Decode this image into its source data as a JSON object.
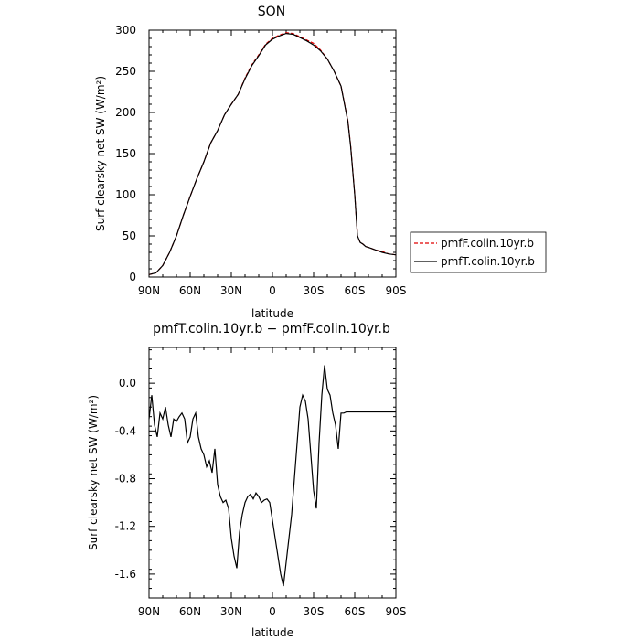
{
  "chart_data": [
    {
      "type": "line",
      "title": "SON",
      "xlabel": "latitude",
      "ylabel": "Surf clearsky net SW (W/m²)",
      "x_tick_labels": [
        "90N",
        "60N",
        "30N",
        "0",
        "30S",
        "60S",
        "90S"
      ],
      "x_ticks": [
        90,
        60,
        30,
        0,
        -30,
        -60,
        -90
      ],
      "y_tick_labels": [
        "0",
        "50",
        "100",
        "150",
        "200",
        "250",
        "300"
      ],
      "y_ticks": [
        0,
        50,
        100,
        150,
        200,
        250,
        300
      ],
      "xlim": [
        90,
        -90
      ],
      "ylim": [
        0,
        300
      ],
      "legend_position": "right",
      "series": [
        {
          "name": "pmfF.colin.10yr.b",
          "color": "#e00000",
          "dash": "dashed",
          "x": [
            90,
            85,
            80,
            75,
            70,
            65,
            60,
            55,
            50,
            45,
            40,
            35,
            30,
            25,
            20,
            15,
            10,
            5,
            0,
            -5,
            -10,
            -15,
            -20,
            -25,
            -30,
            -35,
            -40,
            -45,
            -50,
            -55,
            -57,
            -60,
            -62,
            -64,
            -66,
            -68,
            -70,
            -75,
            -80,
            -85,
            -90
          ],
          "values": [
            3,
            5,
            14,
            30,
            50,
            75,
            98,
            120,
            140,
            163,
            178,
            197,
            210,
            222,
            242,
            258,
            270,
            283,
            290,
            294,
            297,
            296,
            292,
            288,
            284,
            276,
            265,
            250,
            232,
            190,
            160,
            100,
            50,
            42,
            40,
            37,
            36,
            33,
            31,
            28,
            27
          ]
        },
        {
          "name": "pmfT.colin.10yr.b",
          "color": "#000000",
          "dash": "solid",
          "x": [
            90,
            85,
            80,
            75,
            70,
            65,
            60,
            55,
            50,
            45,
            40,
            35,
            30,
            25,
            20,
            15,
            10,
            5,
            0,
            -5,
            -10,
            -15,
            -20,
            -25,
            -30,
            -35,
            -40,
            -45,
            -50,
            -55,
            -57,
            -60,
            -62,
            -64,
            -66,
            -68,
            -70,
            -75,
            -80,
            -85,
            -90
          ],
          "values": [
            3,
            5,
            14,
            30,
            50,
            75,
            98,
            120,
            140,
            163,
            178,
            197,
            210,
            222,
            241,
            257,
            269,
            282,
            289,
            293,
            296,
            295,
            291,
            287,
            282,
            275,
            265,
            250,
            232,
            189,
            159,
            100,
            50,
            42,
            40,
            37,
            36,
            33,
            30,
            28,
            27
          ]
        }
      ]
    },
    {
      "type": "line",
      "title": "pmfT.colin.10yr.b − pmfF.colin.10yr.b",
      "xlabel": "latitude",
      "ylabel": "Surf clearsky net SW (W/m²)",
      "x_tick_labels": [
        "90N",
        "60N",
        "30N",
        "0",
        "30S",
        "60S",
        "90S"
      ],
      "x_ticks": [
        90,
        60,
        30,
        0,
        -30,
        -60,
        -90
      ],
      "y_tick_labels": [
        "0.0",
        "-0.4",
        "-0.8",
        "-1.2",
        "-1.6"
      ],
      "y_ticks": [
        0.0,
        -0.4,
        -0.8,
        -1.2,
        -1.6
      ],
      "xlim": [
        90,
        -90
      ],
      "ylim": [
        -1.8,
        0.3
      ],
      "series": [
        {
          "color": "#000000",
          "x": [
            90,
            88,
            86,
            84,
            82,
            80,
            78,
            76,
            74,
            72,
            70,
            68,
            66,
            64,
            62,
            60,
            58,
            56,
            54,
            52,
            50,
            48,
            46,
            44,
            42,
            40,
            38,
            36,
            34,
            32,
            30,
            28,
            26,
            24,
            22,
            20,
            18,
            16,
            14,
            12,
            10,
            8,
            6,
            4,
            2,
            0,
            -2,
            -4,
            -6,
            -8,
            -10,
            -12,
            -14,
            -16,
            -18,
            -20,
            -22,
            -24,
            -26,
            -28,
            -30,
            -32,
            -34,
            -36,
            -38,
            -40,
            -42,
            -44,
            -46,
            -48,
            -50,
            -52,
            -54,
            -56,
            -58,
            -60,
            -62,
            -64,
            -66,
            -68,
            -70,
            -72,
            -74,
            -76,
            -78,
            -80,
            -82,
            -84,
            -86,
            -88,
            -90
          ],
          "values": [
            -0.3,
            -0.1,
            -0.35,
            -0.45,
            -0.25,
            -0.3,
            -0.2,
            -0.35,
            -0.45,
            -0.3,
            -0.32,
            -0.28,
            -0.25,
            -0.3,
            -0.5,
            -0.45,
            -0.3,
            -0.25,
            -0.45,
            -0.55,
            -0.6,
            -0.7,
            -0.65,
            -0.75,
            -0.55,
            -0.85,
            -0.95,
            -1.0,
            -0.98,
            -1.05,
            -1.3,
            -1.45,
            -1.55,
            -1.25,
            -1.1,
            -1.0,
            -0.95,
            -0.93,
            -0.97,
            -0.92,
            -0.95,
            -1.0,
            -0.98,
            -0.97,
            -1.0,
            -1.15,
            -1.3,
            -1.45,
            -1.6,
            -1.7,
            -1.5,
            -1.3,
            -1.1,
            -0.8,
            -0.5,
            -0.2,
            -0.1,
            -0.15,
            -0.3,
            -0.6,
            -0.9,
            -1.05,
            -0.5,
            -0.1,
            0.15,
            -0.05,
            -0.1,
            -0.25,
            -0.35,
            -0.55,
            -0.25,
            -0.25,
            -0.24,
            -0.24,
            -0.24,
            -0.24,
            -0.24,
            -0.24,
            -0.24,
            -0.24,
            -0.24,
            -0.24,
            -0.24,
            -0.24,
            -0.24,
            -0.24,
            -0.24,
            -0.24,
            -0.24,
            -0.24,
            -0.24
          ]
        }
      ]
    }
  ]
}
